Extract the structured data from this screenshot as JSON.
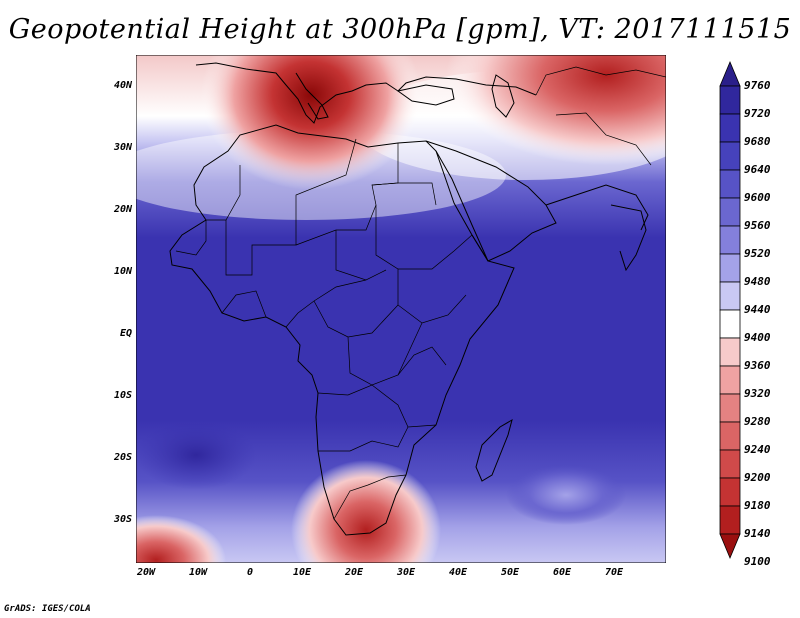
{
  "title": "Geopotential Height at 300hPa [gpm], VT: 2017111515",
  "credit": "GrADS: IGES/COLA",
  "latitude_labels": [
    "40N",
    "30N",
    "20N",
    "10N",
    "EQ",
    "10S",
    "20S",
    "30S"
  ],
  "longitude_labels": [
    "20W",
    "10W",
    "0",
    "10E",
    "20E",
    "30E",
    "40E",
    "50E",
    "60E",
    "70E"
  ],
  "colorbar": {
    "levels": [
      "9760",
      "9720",
      "9680",
      "9640",
      "9600",
      "9560",
      "9520",
      "9480",
      "9440",
      "9400",
      "9360",
      "9320",
      "9280",
      "9240",
      "9200",
      "9180",
      "9140",
      "9100"
    ],
    "colors": [
      "#2a1f8a",
      "#30279d",
      "#3a33b0",
      "#4642bc",
      "#5753c6",
      "#6b67d0",
      "#8480dc",
      "#a4a2e8",
      "#c9c8f3",
      "#ffffff",
      "#f7caca",
      "#efa2a2",
      "#e48282",
      "#da6565",
      "#d04a4a",
      "#c43333",
      "#b21f1f",
      "#9a0f0f"
    ]
  },
  "map_colors": {
    "sea_deep": "#3a33b0",
    "ridge_low": "#9a0f0f",
    "coastline": "#000000"
  }
}
